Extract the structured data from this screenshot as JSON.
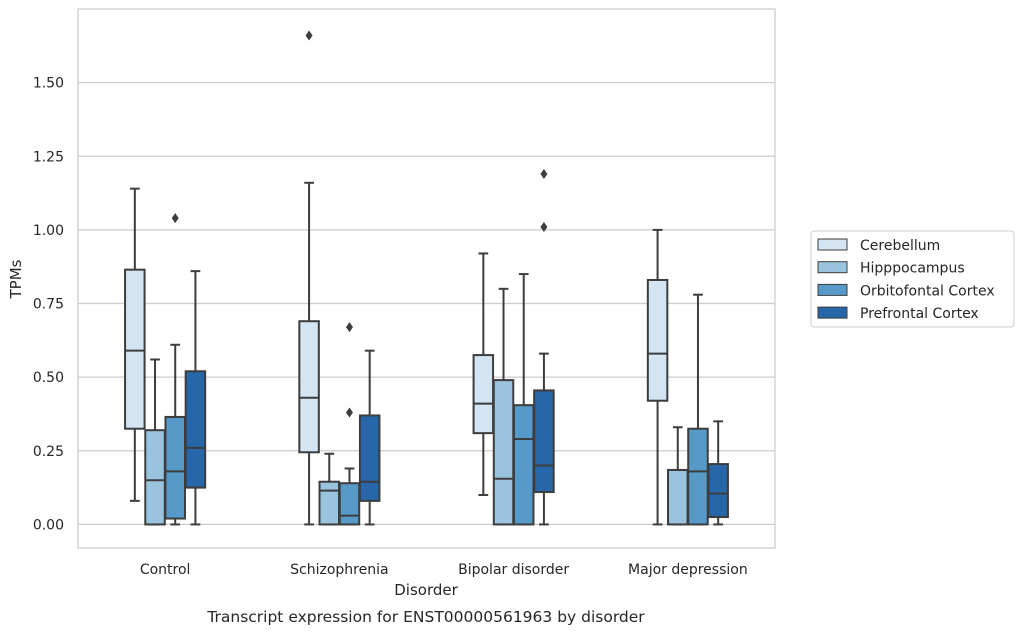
{
  "chart_data": {
    "type": "box",
    "caption": "Transcript expression for ENST00000561963 by disorder",
    "xlabel": "Disorder",
    "ylabel": "TPMs",
    "ylim": [
      -0.08,
      1.75
    ],
    "yticks": [
      "0.00",
      "0.25",
      "0.50",
      "0.75",
      "1.00",
      "1.25",
      "1.50"
    ],
    "grid": true,
    "legend_position": "right",
    "categories": [
      "Control",
      "Schizophrenia",
      "Bipolar disorder",
      "Major depression"
    ],
    "series": [
      {
        "name": "Cerebellum",
        "color": "#d3e4f3",
        "boxes": [
          {
            "whislo": 0.08,
            "q1": 0.325,
            "med": 0.59,
            "q3": 0.865,
            "whishi": 1.14,
            "fliers": []
          },
          {
            "whislo": 0.0,
            "q1": 0.245,
            "med": 0.43,
            "q3": 0.69,
            "whishi": 1.16,
            "fliers": [
              1.66
            ]
          },
          {
            "whislo": 0.1,
            "q1": 0.31,
            "med": 0.41,
            "q3": 0.575,
            "whishi": 0.92,
            "fliers": []
          },
          {
            "whislo": 0.0,
            "q1": 0.42,
            "med": 0.58,
            "q3": 0.83,
            "whishi": 1.0,
            "fliers": []
          }
        ]
      },
      {
        "name": "Hipppocampus",
        "color": "#9ac4de",
        "boxes": [
          {
            "whislo": 0.0,
            "q1": 0.0,
            "med": 0.15,
            "q3": 0.32,
            "whishi": 0.56,
            "fliers": []
          },
          {
            "whislo": 0.0,
            "q1": 0.0,
            "med": 0.115,
            "q3": 0.145,
            "whishi": 0.24,
            "fliers": []
          },
          {
            "whislo": 0.0,
            "q1": 0.0,
            "med": 0.155,
            "q3": 0.49,
            "whishi": 0.8,
            "fliers": []
          },
          {
            "whislo": 0.0,
            "q1": 0.0,
            "med": 0.185,
            "q3": 0.185,
            "whishi": 0.33,
            "fliers": []
          }
        ]
      },
      {
        "name": "Orbitofontal Cortex",
        "color": "#5799c7",
        "boxes": [
          {
            "whislo": 0.0,
            "q1": 0.02,
            "med": 0.18,
            "q3": 0.365,
            "whishi": 0.61,
            "fliers": [
              1.04
            ]
          },
          {
            "whislo": 0.0,
            "q1": 0.0,
            "med": 0.03,
            "q3": 0.14,
            "whishi": 0.19,
            "fliers": [
              0.38,
              0.67
            ]
          },
          {
            "whislo": 0.0,
            "q1": 0.0,
            "med": 0.29,
            "q3": 0.405,
            "whishi": 0.85,
            "fliers": []
          },
          {
            "whislo": 0.0,
            "q1": 0.0,
            "med": 0.18,
            "q3": 0.325,
            "whishi": 0.78,
            "fliers": []
          }
        ]
      },
      {
        "name": "Prefrontal Cortex",
        "color": "#2666a9",
        "boxes": [
          {
            "whislo": 0.0,
            "q1": 0.125,
            "med": 0.26,
            "q3": 0.52,
            "whishi": 0.86,
            "fliers": []
          },
          {
            "whislo": 0.0,
            "q1": 0.08,
            "med": 0.145,
            "q3": 0.37,
            "whishi": 0.59,
            "fliers": []
          },
          {
            "whislo": 0.0,
            "q1": 0.11,
            "med": 0.2,
            "q3": 0.455,
            "whishi": 0.58,
            "fliers": [
              1.01,
              1.19
            ]
          },
          {
            "whislo": 0.0,
            "q1": 0.025,
            "med": 0.105,
            "q3": 0.205,
            "whishi": 0.35,
            "fliers": []
          }
        ]
      }
    ]
  }
}
